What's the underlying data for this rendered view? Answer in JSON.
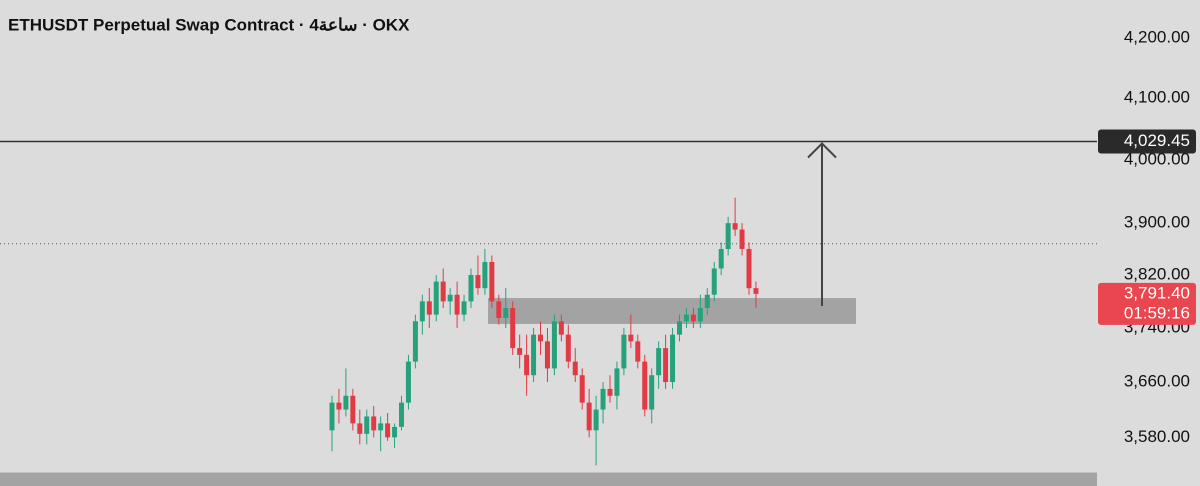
{
  "chart_data": {
    "type": "candlestick",
    "title": "ETHUSDT Perpetual Swap Contract · 4ساعة · OKX",
    "log_scale": true,
    "ylim": [
      3511,
      4264
    ],
    "yticks": [
      {
        "value": 4200,
        "label": "4,200.00"
      },
      {
        "value": 4100,
        "label": "4,100.00"
      },
      {
        "value": 4000,
        "label": "4,000.00"
      },
      {
        "value": 3900,
        "label": "3,900.00"
      },
      {
        "value": 3820,
        "label": "3,820.00"
      },
      {
        "value": 3740,
        "label": "3,740.00"
      },
      {
        "value": 3660,
        "label": "3,660.00"
      },
      {
        "value": 3580,
        "label": "3,580.00"
      }
    ],
    "up_color": "#26a17b",
    "down_color": "#e03a45",
    "open": [
      3590,
      3630,
      3620,
      3640,
      3600,
      3585,
      3610,
      3590,
      3600,
      3580,
      3595,
      3630,
      3690,
      3750,
      3780,
      3760,
      3810,
      3780,
      3790,
      3760,
      3780,
      3820,
      3800,
      3840,
      3780,
      3755,
      3770,
      3710,
      3700,
      3670,
      3730,
      3720,
      3680,
      3750,
      3730,
      3690,
      3670,
      3630,
      3590,
      3620,
      3650,
      3640,
      3680,
      3730,
      3720,
      3690,
      3620,
      3670,
      3710,
      3660,
      3730,
      3750,
      3760,
      3750,
      3770,
      3790,
      3830,
      3860,
      3900,
      3890,
      3860,
      3800
    ],
    "high": [
      3640,
      3650,
      3680,
      3650,
      3620,
      3620,
      3625,
      3610,
      3615,
      3600,
      3640,
      3700,
      3760,
      3790,
      3800,
      3820,
      3830,
      3800,
      3810,
      3790,
      3830,
      3850,
      3860,
      3850,
      3790,
      3800,
      3780,
      3730,
      3730,
      3740,
      3750,
      3740,
      3760,
      3760,
      3745,
      3710,
      3680,
      3650,
      3640,
      3660,
      3670,
      3690,
      3740,
      3760,
      3730,
      3700,
      3680,
      3720,
      3730,
      3740,
      3760,
      3770,
      3770,
      3790,
      3800,
      3840,
      3870,
      3910,
      3940,
      3900,
      3870,
      3810
    ],
    "low": [
      3560,
      3600,
      3610,
      3590,
      3570,
      3570,
      3580,
      3560,
      3575,
      3565,
      3590,
      3620,
      3680,
      3730,
      3740,
      3750,
      3770,
      3760,
      3740,
      3750,
      3770,
      3790,
      3790,
      3770,
      3745,
      3740,
      3700,
      3680,
      3640,
      3660,
      3700,
      3660,
      3670,
      3720,
      3680,
      3660,
      3620,
      3580,
      3540,
      3600,
      3630,
      3620,
      3670,
      3710,
      3680,
      3610,
      3600,
      3650,
      3650,
      3650,
      3720,
      3740,
      3740,
      3740,
      3760,
      3780,
      3820,
      3850,
      3880,
      3850,
      3790,
      3770
    ],
    "close": [
      3630,
      3620,
      3640,
      3600,
      3585,
      3610,
      3590,
      3600,
      3580,
      3595,
      3630,
      3690,
      3750,
      3780,
      3760,
      3810,
      3780,
      3790,
      3760,
      3780,
      3820,
      3800,
      3840,
      3780,
      3755,
      3770,
      3710,
      3700,
      3670,
      3730,
      3720,
      3680,
      3750,
      3730,
      3690,
      3670,
      3630,
      3590,
      3620,
      3650,
      3640,
      3680,
      3730,
      3720,
      3690,
      3620,
      3670,
      3710,
      3660,
      3730,
      3750,
      3760,
      3750,
      3770,
      3790,
      3830,
      3860,
      3900,
      3890,
      3860,
      3800,
      3791.4
    ],
    "reference_line": 3868,
    "zones": [
      {
        "low": 3746,
        "high": 3785
      },
      {
        "low": 3511,
        "high": 3530
      }
    ],
    "target_level": {
      "value": 4029.45,
      "label": "4,029.45"
    },
    "current_price": {
      "value": 3791.4,
      "label": "3,791.40"
    },
    "countdown": "01:59:16"
  }
}
